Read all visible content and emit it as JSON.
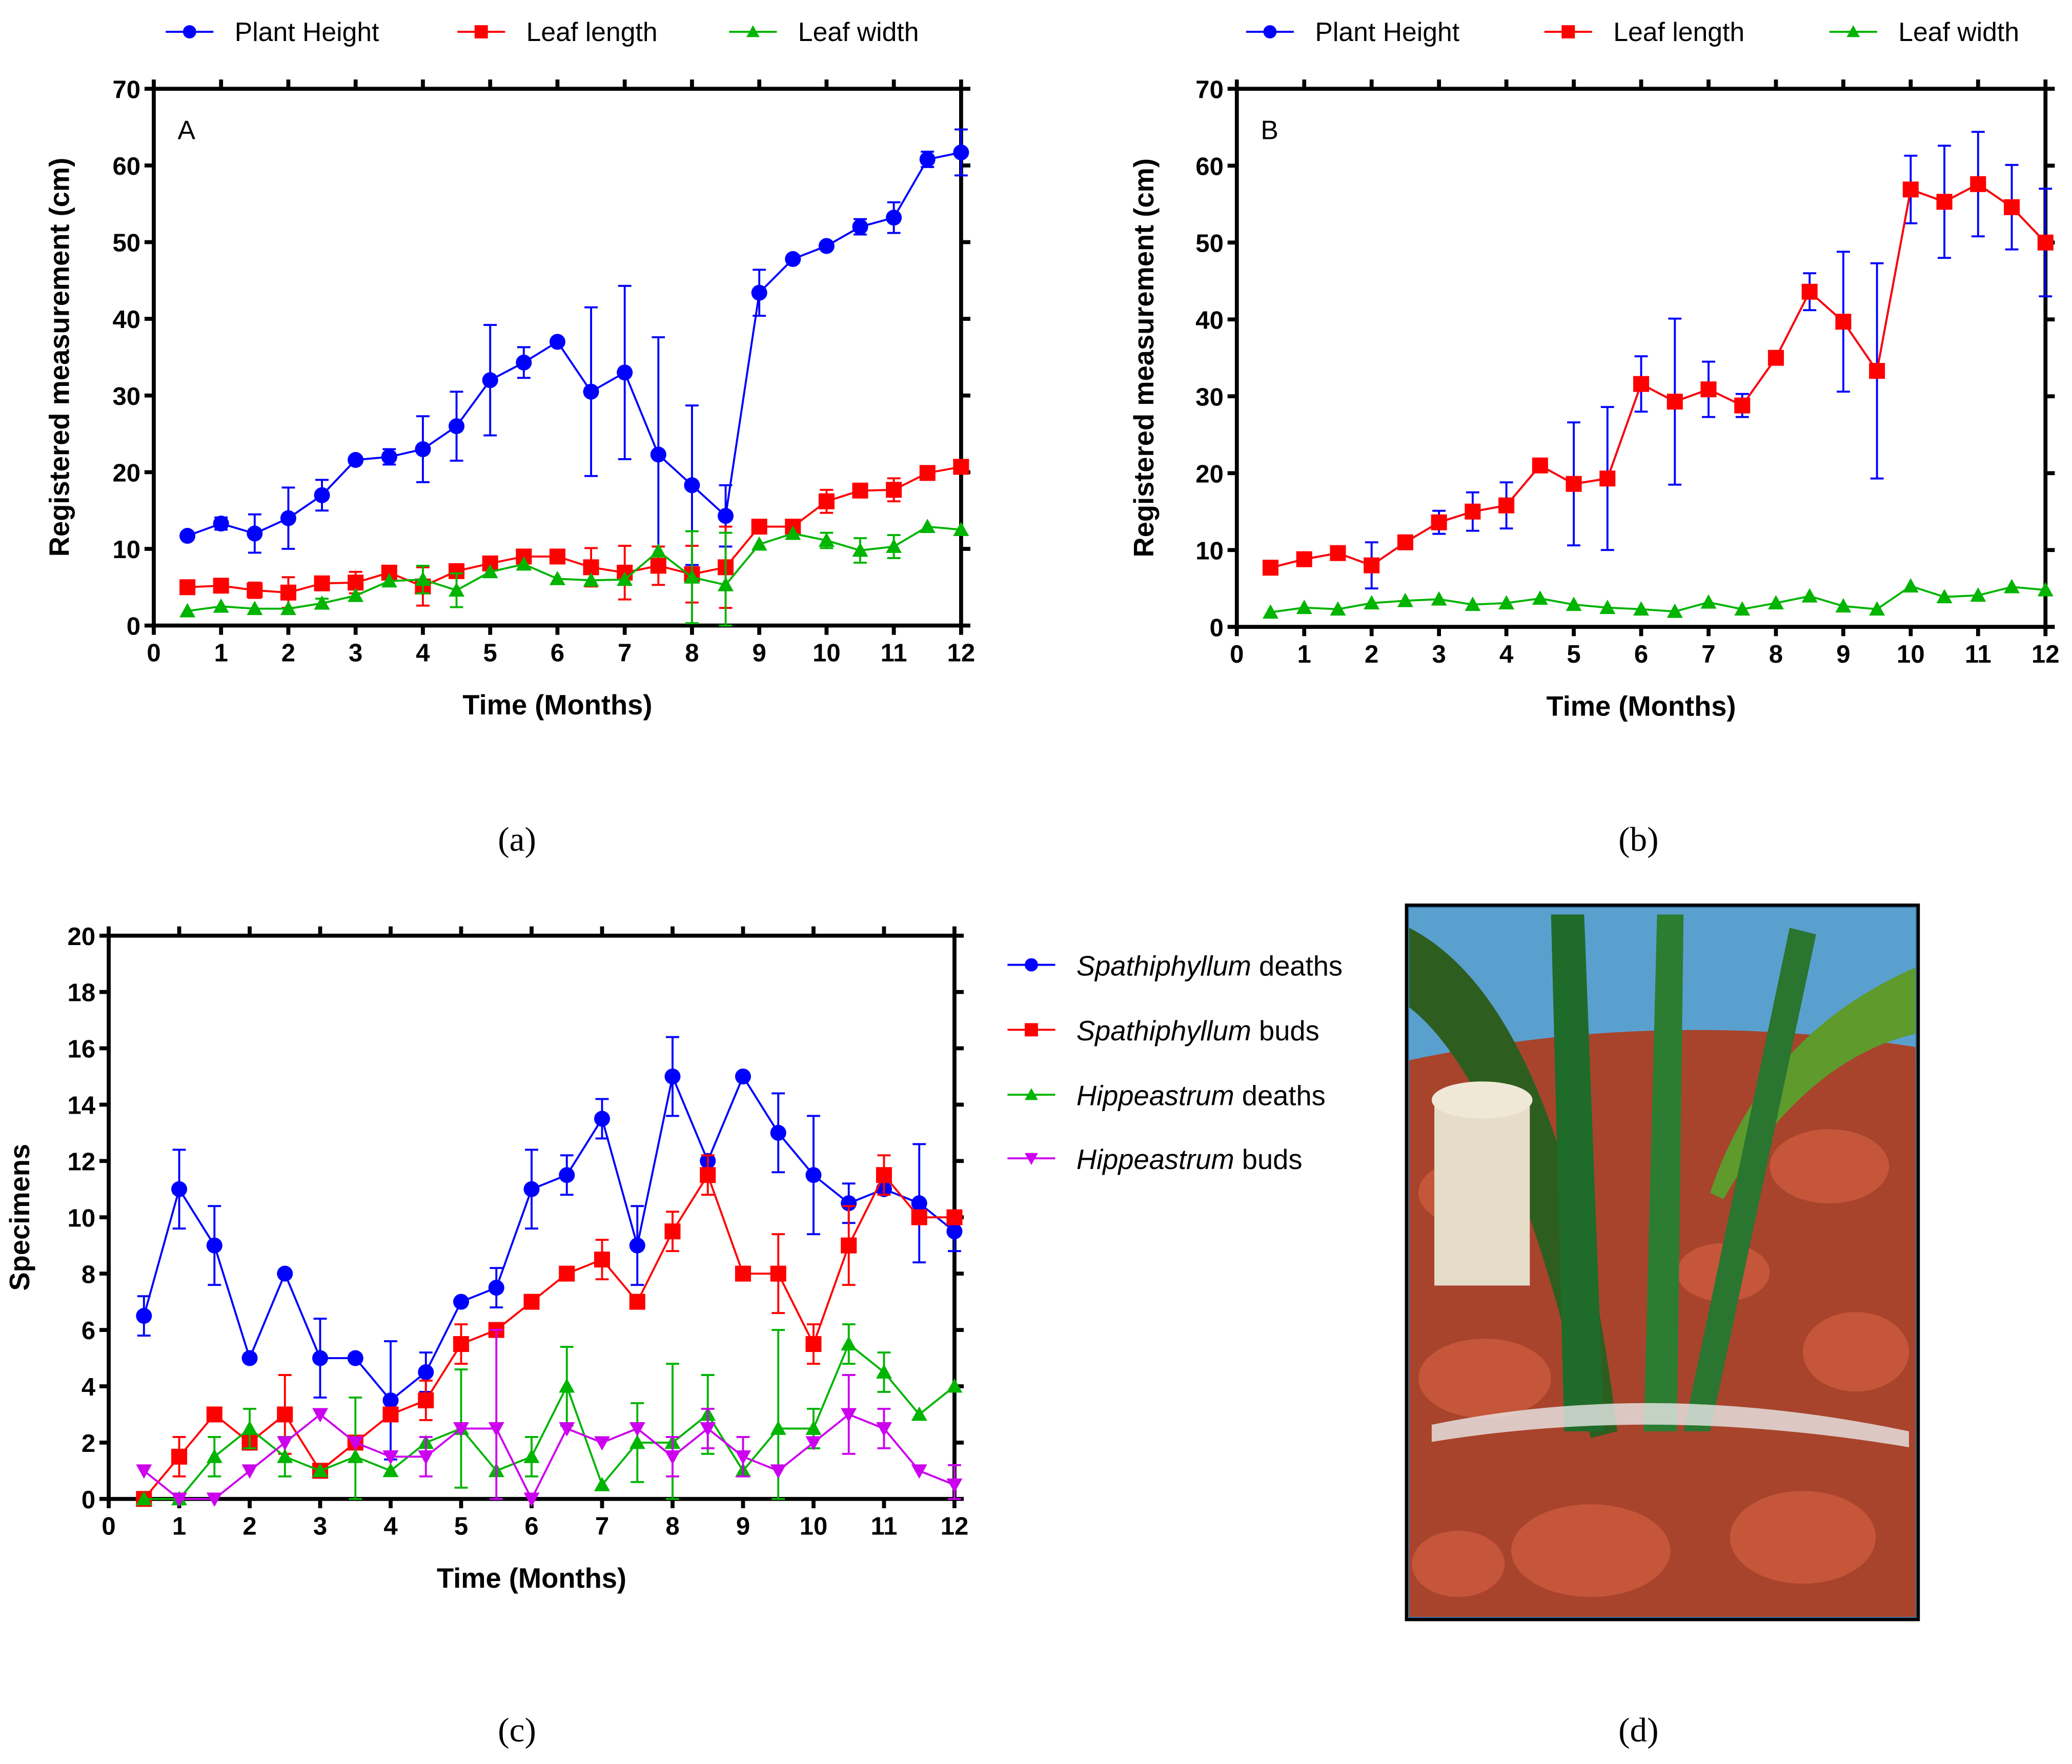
{
  "captions": [
    "(a)",
    "(b)",
    "(c)",
    "(d)"
  ],
  "colors": {
    "blue": "#0000ff",
    "red": "#ff0000",
    "green": "#00b400",
    "magenta": "#cc00ee"
  },
  "chart_data": [
    {
      "type": "line",
      "panel_label": "A",
      "xlabel": "Time (Months)",
      "ylabel": "Registered measurement (cm)",
      "xlim": [
        0,
        12
      ],
      "ylim": [
        0,
        70
      ],
      "xticks": [
        0,
        1,
        2,
        3,
        4,
        5,
        6,
        7,
        8,
        9,
        10,
        11,
        12
      ],
      "yticks": [
        0,
        10,
        20,
        30,
        40,
        50,
        60,
        70
      ],
      "legend_position": "top",
      "x": [
        0.5,
        1,
        1.5,
        2,
        2.5,
        3,
        3.5,
        4,
        4.5,
        5,
        5.5,
        6,
        6.5,
        7,
        7.5,
        8,
        8.5,
        9,
        9.5,
        10,
        10.5,
        11,
        11.5,
        12
      ],
      "series": [
        {
          "name": "Plant Height",
          "marker": "circle",
          "color": "#0000ff",
          "values": [
            11.7,
            13.3,
            12,
            14,
            17,
            21.6,
            22,
            23,
            26,
            32,
            34.3,
            37,
            30.5,
            33,
            22.3,
            18.3,
            14.3,
            43.4,
            47.8,
            49.5,
            52,
            53.2,
            60.8,
            61.7
          ],
          "errors": [
            0.3,
            0.8,
            2.5,
            4,
            2,
            0.2,
            1,
            4.3,
            4.5,
            7.2,
            2,
            0.2,
            11,
            11.3,
            15.3,
            10.4,
            4,
            3,
            0.5,
            0.3,
            1,
            2,
            1,
            3
          ]
        },
        {
          "name": "Leaf length",
          "marker": "square",
          "color": "#ff0000",
          "values": [
            5,
            5.2,
            4.6,
            4.3,
            5.5,
            5.6,
            6.9,
            5.1,
            7.1,
            8.1,
            9,
            9,
            7.6,
            6.9,
            7.8,
            6.7,
            7.6,
            12.9,
            12.9,
            16.2,
            17.6,
            17.7,
            19.9,
            20.7
          ],
          "errors": [
            0,
            0,
            1,
            2,
            0,
            1.4,
            0.5,
            2.5,
            0,
            0,
            0,
            0,
            2.5,
            3.5,
            2.5,
            3.7,
            5.3,
            0,
            0,
            1.5,
            0,
            1.5,
            0,
            0
          ]
        },
        {
          "name": "Leaf width",
          "marker": "triangle-up",
          "color": "#00b400",
          "values": [
            1.9,
            2.5,
            2.2,
            2.2,
            2.9,
            3.9,
            5.8,
            6,
            4.6,
            7,
            8,
            6.1,
            5.9,
            6,
            9.7,
            6.3,
            5.3,
            10.6,
            12,
            11.1,
            9.8,
            10.3,
            12.9,
            12.5
          ],
          "errors": [
            0,
            0,
            0,
            0,
            0.6,
            0,
            0,
            1.8,
            2.2,
            0,
            0,
            0,
            0,
            0,
            0,
            6,
            6.8,
            0,
            0,
            1,
            1.6,
            1.5,
            0,
            0
          ]
        }
      ]
    },
    {
      "type": "line",
      "panel_label": "B",
      "xlabel": "Time (Months)",
      "ylabel": "Registered measurement (cm)",
      "xlim": [
        0,
        12
      ],
      "ylim": [
        0,
        70
      ],
      "xticks": [
        0,
        1,
        2,
        3,
        4,
        5,
        6,
        7,
        8,
        9,
        10,
        11,
        12
      ],
      "yticks": [
        0,
        10,
        20,
        30,
        40,
        50,
        60,
        70
      ],
      "legend_position": "top",
      "x": [
        0.5,
        1,
        1.5,
        2,
        2.5,
        3,
        3.5,
        4,
        4.5,
        5,
        5.5,
        6,
        6.5,
        7,
        7.5,
        8,
        8.5,
        9,
        9.5,
        10,
        10.5,
        11,
        11.5,
        12
      ],
      "series": [
        {
          "name": "Plant Height",
          "marker": "circle",
          "color": "#0000ff",
          "values": [
            7.7,
            8.8,
            9.6,
            8,
            11,
            13.6,
            15,
            15.8,
            21,
            18.6,
            19.3,
            31.6,
            29.3,
            30.9,
            28.8,
            35,
            43.6,
            39.7,
            33.3,
            56.9,
            55.3,
            57.6,
            54.6,
            50
          ],
          "errors": [
            0.5,
            0.5,
            0.5,
            3,
            0.8,
            1.5,
            2.5,
            3,
            0.8,
            8,
            9.3,
            3.6,
            10.8,
            3.6,
            1.5,
            0.5,
            2.4,
            9.1,
            14,
            4.4,
            7.3,
            6.8,
            5.5,
            7
          ]
        },
        {
          "name": "Leaf length",
          "marker": "square",
          "color": "#ff0000",
          "values": [
            7.7,
            8.8,
            9.6,
            8,
            11,
            13.6,
            15,
            15.8,
            21,
            18.6,
            19.3,
            31.6,
            29.3,
            30.9,
            28.8,
            35,
            43.6,
            39.7,
            33.3,
            56.9,
            55.3,
            57.6,
            54.6,
            50
          ],
          "errors": [
            0,
            0,
            0,
            0,
            0,
            0,
            0,
            0,
            0,
            0,
            0,
            0,
            0,
            0,
            0,
            0,
            0,
            0,
            0,
            0,
            0,
            0,
            0,
            0
          ]
        },
        {
          "name": "Leaf width",
          "marker": "triangle-up",
          "color": "#00b400",
          "values": [
            1.9,
            2.5,
            2.3,
            3.1,
            3.4,
            3.6,
            2.9,
            3.1,
            3.7,
            2.9,
            2.5,
            2.3,
            2,
            3.2,
            2.3,
            3.1,
            4,
            2.7,
            2.3,
            5.3,
            3.9,
            4.1,
            5.2,
            4.8
          ],
          "errors": [
            0,
            0,
            0,
            0,
            0,
            0,
            0,
            0,
            0,
            0,
            0,
            0,
            0,
            0,
            0,
            0,
            0,
            0,
            0,
            0,
            0,
            0,
            0,
            0
          ]
        }
      ]
    },
    {
      "type": "line",
      "panel_label": "",
      "xlabel": "Time (Months)",
      "ylabel": "Specimens",
      "xlim": [
        0,
        12
      ],
      "ylim": [
        0,
        20
      ],
      "xticks": [
        0,
        1,
        2,
        3,
        4,
        5,
        6,
        7,
        8,
        9,
        10,
        11,
        12
      ],
      "yticks": [
        0,
        2,
        4,
        6,
        8,
        10,
        12,
        14,
        16,
        18,
        20
      ],
      "legend_position": "right",
      "x": [
        0.5,
        1,
        1.5,
        2,
        2.5,
        3,
        3.5,
        4,
        4.5,
        5,
        5.5,
        6,
        6.5,
        7,
        7.5,
        8,
        8.5,
        9,
        9.5,
        10,
        10.5,
        11,
        11.5,
        12
      ],
      "series": [
        {
          "name": "Spathiphyllum deaths",
          "genus": "Spathiphyllum",
          "suffix": " deaths",
          "marker": "circle",
          "color": "#0000ff",
          "values": [
            6.5,
            11,
            9,
            5,
            8,
            5,
            5,
            3.5,
            4.5,
            7,
            7.5,
            11,
            11.5,
            13.5,
            9,
            15,
            12,
            15,
            13,
            11.5,
            10.5,
            11,
            10.5,
            9.5
          ],
          "errors": [
            0.7,
            1.4,
            1.4,
            0,
            0,
            1.4,
            0,
            2.1,
            0.7,
            0,
            0.7,
            1.4,
            0.7,
            0.7,
            1.4,
            1.4,
            0,
            0,
            1.4,
            2.1,
            0.7,
            0,
            2.1,
            0.7
          ]
        },
        {
          "name": "Spathiphyllum buds",
          "genus": "Spathiphyllum",
          "suffix": " buds",
          "marker": "square",
          "color": "#ff0000",
          "values": [
            0,
            1.5,
            3,
            2,
            3,
            1,
            2,
            3,
            3.5,
            5.5,
            6,
            7,
            8,
            8.5,
            7,
            9.5,
            11.5,
            8,
            8,
            5.5,
            9,
            11.5,
            10,
            10
          ],
          "errors": [
            0,
            0.7,
            0,
            0,
            1.4,
            0,
            0,
            0,
            0.7,
            0.7,
            0,
            0,
            0,
            0.7,
            0,
            0.7,
            0.7,
            0,
            1.4,
            0.7,
            1.4,
            0.7,
            0,
            0
          ]
        },
        {
          "name": "Hippeastrum deaths",
          "genus": "Hippeastrum",
          "suffix": " deaths",
          "marker": "triangle-up",
          "color": "#00b400",
          "values": [
            0,
            0,
            1.5,
            2.5,
            1.5,
            1,
            1.5,
            1,
            2,
            2.5,
            1,
            1.5,
            4,
            0.5,
            2,
            2,
            3,
            1,
            2.5,
            2.5,
            5.5,
            4.5,
            3,
            4
          ],
          "errors": [
            0,
            0,
            0.7,
            0.7,
            0.7,
            0,
            2.1,
            0,
            0,
            2.1,
            0,
            0.7,
            1.4,
            0,
            1.4,
            2.8,
            1.4,
            0,
            3.5,
            0.7,
            0.7,
            0.7,
            0,
            0
          ]
        },
        {
          "name": "Hippeastrum buds",
          "genus": "Hippeastrum",
          "suffix": " buds",
          "marker": "triangle-down",
          "color": "#cc00ee",
          "values": [
            1,
            0,
            0,
            1,
            2,
            3,
            2,
            1.5,
            1.5,
            2.5,
            2.5,
            0,
            2.5,
            2,
            2.5,
            1.5,
            2.5,
            1.5,
            1,
            2,
            3,
            2.5,
            1,
            0.5
          ],
          "errors": [
            0,
            0,
            0,
            0,
            0,
            0,
            0,
            0,
            0.7,
            0,
            3.5,
            0,
            0,
            0,
            0,
            0.7,
            0.7,
            0.7,
            0,
            0,
            1.4,
            0.7,
            0,
            0.7
          ]
        }
      ]
    }
  ]
}
